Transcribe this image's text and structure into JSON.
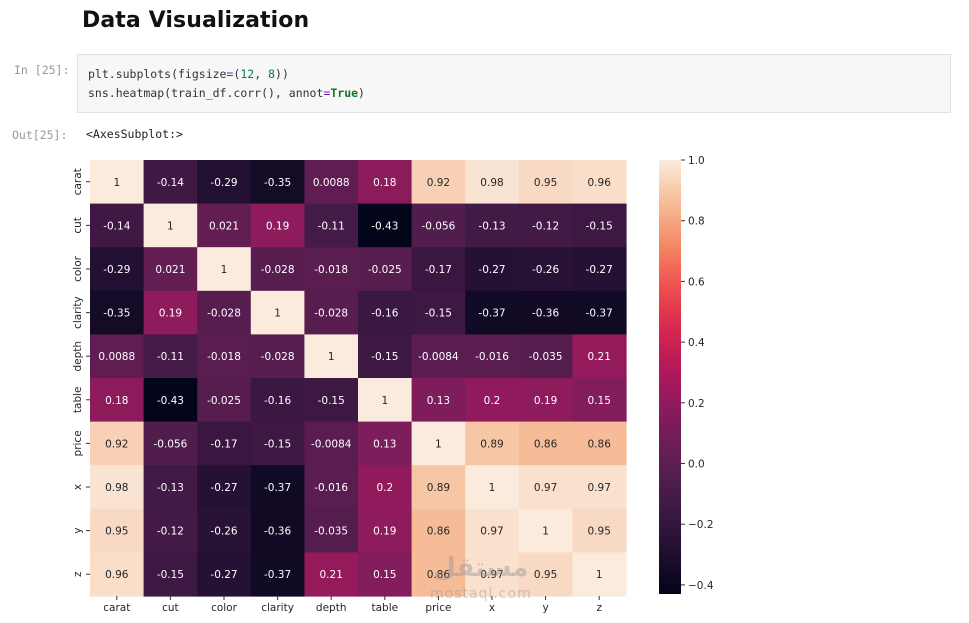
{
  "heading": "Data Visualization",
  "cell_in": {
    "prompt": "In [25]:",
    "code_line_1": {
      "a": "plt.subplots(figsize",
      "b": "=",
      "c": "(",
      "d": "12",
      "e": ", ",
      "f": "8",
      "g": "))"
    },
    "code_line_2": {
      "a": "sns.heatmap(train_df.corr(), annot",
      "b": "=",
      "c": "True",
      "d": ")"
    }
  },
  "cell_out": {
    "prompt": "Out[25]:",
    "text": "<AxesSubplot:>"
  },
  "watermark": {
    "main": "مستقل",
    "sub": "mostaql.com"
  },
  "chart_data": {
    "type": "heatmap",
    "labels": [
      "carat",
      "cut",
      "color",
      "clarity",
      "depth",
      "table",
      "price",
      "x",
      "y",
      "z"
    ],
    "values": [
      [
        1,
        -0.14,
        -0.29,
        -0.35,
        0.0088,
        0.18,
        0.92,
        0.98,
        0.95,
        0.96
      ],
      [
        -0.14,
        1,
        0.021,
        0.19,
        -0.11,
        -0.43,
        -0.056,
        -0.13,
        -0.12,
        -0.15
      ],
      [
        -0.29,
        0.021,
        1,
        -0.028,
        -0.018,
        -0.025,
        -0.17,
        -0.27,
        -0.26,
        -0.27
      ],
      [
        -0.35,
        0.19,
        -0.028,
        1,
        -0.028,
        -0.16,
        -0.15,
        -0.37,
        -0.36,
        -0.37
      ],
      [
        0.0088,
        -0.11,
        -0.018,
        -0.028,
        1,
        -0.15,
        -0.0084,
        -0.016,
        -0.035,
        0.21
      ],
      [
        0.18,
        -0.43,
        -0.025,
        -0.16,
        -0.15,
        1,
        0.13,
        0.2,
        0.19,
        0.15
      ],
      [
        0.92,
        -0.056,
        -0.17,
        -0.15,
        -0.0084,
        0.13,
        1,
        0.89,
        0.86,
        0.86
      ],
      [
        0.98,
        -0.13,
        -0.27,
        -0.37,
        -0.016,
        0.2,
        0.89,
        1,
        0.97,
        0.97
      ],
      [
        0.95,
        -0.12,
        -0.26,
        -0.36,
        -0.035,
        0.19,
        0.86,
        0.97,
        1,
        0.95
      ],
      [
        0.96,
        -0.15,
        -0.27,
        -0.37,
        0.21,
        0.15,
        0.86,
        0.97,
        0.95,
        1
      ]
    ],
    "labels_text": [
      [
        "1",
        "-0.14",
        "-0.29",
        "-0.35",
        "0.0088",
        "0.18",
        "0.92",
        "0.98",
        "0.95",
        "0.96"
      ],
      [
        "-0.14",
        "1",
        "0.021",
        "0.19",
        "-0.11",
        "-0.43",
        "-0.056",
        "-0.13",
        "-0.12",
        "-0.15"
      ],
      [
        "-0.29",
        "0.021",
        "1",
        "-0.028",
        "-0.018",
        "-0.025",
        "-0.17",
        "-0.27",
        "-0.26",
        "-0.27"
      ],
      [
        "-0.35",
        "0.19",
        "-0.028",
        "1",
        "-0.028",
        "-0.16",
        "-0.15",
        "-0.37",
        "-0.36",
        "-0.37"
      ],
      [
        "0.0088",
        "-0.11",
        "-0.018",
        "-0.028",
        "1",
        "-0.15",
        "-0.0084",
        "-0.016",
        "-0.035",
        "0.21"
      ],
      [
        "0.18",
        "-0.43",
        "-0.025",
        "-0.16",
        "-0.15",
        "1",
        "0.13",
        "0.2",
        "0.19",
        "0.15"
      ],
      [
        "0.92",
        "-0.056",
        "-0.17",
        "-0.15",
        "-0.0084",
        "0.13",
        "1",
        "0.89",
        "0.86",
        "0.86"
      ],
      [
        "0.98",
        "-0.13",
        "-0.27",
        "-0.37",
        "-0.016",
        "0.2",
        "0.89",
        "1",
        "0.97",
        "0.97"
      ],
      [
        "0.95",
        "-0.12",
        "-0.26",
        "-0.36",
        "-0.035",
        "0.19",
        "0.86",
        "0.97",
        "1",
        "0.95"
      ],
      [
        "0.96",
        "-0.15",
        "-0.27",
        "-0.37",
        "0.21",
        "0.15",
        "0.86",
        "0.97",
        "0.95",
        "1"
      ]
    ],
    "colorbar": {
      "vmin": -0.43,
      "vmax": 1.0,
      "ticks": [
        1.0,
        0.8,
        0.6,
        0.4,
        0.2,
        0.0,
        -0.2,
        -0.4
      ],
      "tick_labels": [
        "1.0",
        "0.8",
        "0.6",
        "0.4",
        "0.2",
        "0.0",
        "−0.2",
        "−0.4"
      ]
    },
    "colormap": "rocket",
    "annot": true
  }
}
